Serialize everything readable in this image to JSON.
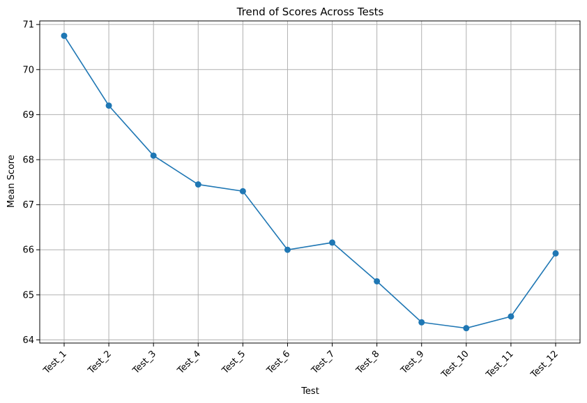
{
  "chart_data": {
    "type": "line",
    "title": "Trend of Scores Across Tests",
    "xlabel": "Test",
    "ylabel": "Mean Score",
    "categories": [
      "Test_1",
      "Test_2",
      "Test_3",
      "Test_4",
      "Test_5",
      "Test_6",
      "Test_7",
      "Test_8",
      "Test_9",
      "Test_10",
      "Test_11",
      "Test_12"
    ],
    "series": [
      {
        "values": [
          70.75,
          69.2,
          68.09,
          67.45,
          67.3,
          66.0,
          66.16,
          65.3,
          64.39,
          64.26,
          64.52,
          65.92
        ],
        "color": "#1f77b4",
        "marker": "circle"
      }
    ],
    "yticks": [
      64,
      65,
      66,
      67,
      68,
      69,
      70,
      71
    ],
    "ylim": [
      63.93,
      71.08
    ],
    "grid": true,
    "x_tick_rotation": "45 degrees",
    "legend": "none"
  }
}
